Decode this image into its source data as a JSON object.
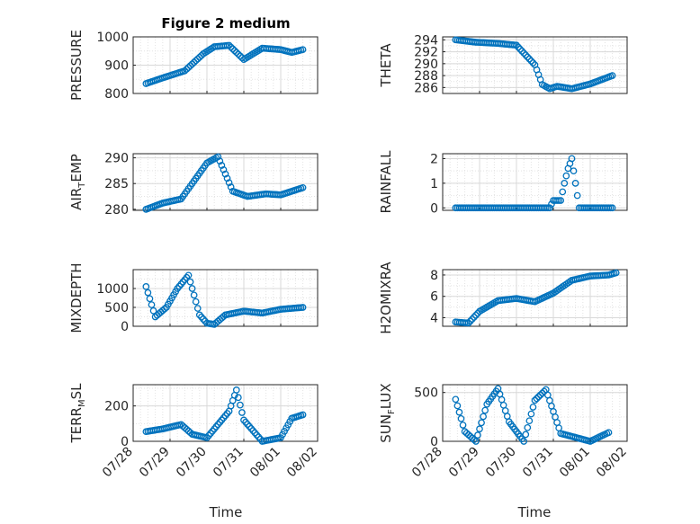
{
  "figure": {
    "title": "Figure 2 medium",
    "xlabel": "Time"
  },
  "colors": {
    "marker": "#0072bd",
    "axis": "#262626",
    "grid": "#d9d9d9"
  },
  "chart_data": [
    {
      "type": "scatter",
      "ylabel": "PRESSURE",
      "ylabel_sub": "",
      "x_ticks": [
        "07/28",
        "07/29",
        "07/30",
        "07/31",
        "08/01",
        "08/02"
      ],
      "ylim": [
        800,
        1000
      ],
      "yticks": [
        800,
        900,
        1000
      ],
      "grid": true,
      "series": [
        {
          "x": [
            0.35,
            0.8,
            1.4,
            1.9,
            2.2,
            2.6,
            3.0,
            3.5,
            4.0,
            4.3,
            4.6
          ],
          "y": [
            835,
            855,
            880,
            940,
            965,
            970,
            920,
            960,
            955,
            945,
            955
          ]
        }
      ]
    },
    {
      "type": "scatter",
      "ylabel": "THETA",
      "ylabel_sub": "",
      "x_ticks": [
        "07/28",
        "07/29",
        "07/30",
        "07/31",
        "08/01",
        "08/02"
      ],
      "ylim": [
        285,
        294.5
      ],
      "yticks": [
        286,
        288,
        290,
        292,
        294
      ],
      "grid": true,
      "series": [
        {
          "x": [
            0.35,
            0.9,
            1.5,
            2.0,
            2.5,
            2.7,
            2.9,
            3.1,
            3.5,
            4.0,
            4.6
          ],
          "y": [
            294,
            293.6,
            293.4,
            293.1,
            289.8,
            286.5,
            285.8,
            286.2,
            285.8,
            286.6,
            288
          ]
        }
      ]
    },
    {
      "type": "scatter",
      "ylabel": "AIR",
      "ylabel_sub": "T",
      "ylabel_suffix": "EMP",
      "x_ticks": [
        "07/28",
        "07/29",
        "07/30",
        "07/31",
        "08/01",
        "08/02"
      ],
      "ylim": [
        279.8,
        290.8
      ],
      "yticks": [
        280,
        285,
        290
      ],
      "grid": true,
      "series": [
        {
          "x": [
            0.35,
            0.8,
            1.3,
            1.7,
            2.0,
            2.3,
            2.7,
            3.1,
            3.6,
            4.0,
            4.6
          ],
          "y": [
            280,
            281.2,
            282,
            286,
            289,
            290.2,
            283.5,
            282.5,
            283,
            282.8,
            284.2
          ]
        }
      ]
    },
    {
      "type": "scatter",
      "ylabel": "RAINFALL",
      "ylabel_sub": "",
      "x_ticks": [
        "07/28",
        "07/29",
        "07/30",
        "07/31",
        "08/01",
        "08/02"
      ],
      "ylim": [
        -0.1,
        2.2
      ],
      "yticks": [
        0,
        1,
        2
      ],
      "grid": true,
      "series": [
        {
          "x": [
            0.35,
            1.0,
            2.0,
            2.9,
            3.0,
            3.2,
            3.3,
            3.4,
            3.5,
            3.7,
            4.2,
            4.6
          ],
          "y": [
            0,
            0,
            0,
            0,
            0.3,
            0.3,
            1.0,
            1.6,
            2.0,
            0,
            0,
            0
          ]
        }
      ]
    },
    {
      "type": "scatter",
      "ylabel": "MIXDEPTH",
      "ylabel_sub": "",
      "x_ticks": [
        "07/28",
        "07/29",
        "07/30",
        "07/31",
        "08/01",
        "08/02"
      ],
      "ylim": [
        0,
        1500
      ],
      "yticks": [
        0,
        500,
        1000
      ],
      "grid": true,
      "series": [
        {
          "x": [
            0.35,
            0.6,
            0.9,
            1.2,
            1.5,
            1.8,
            2.0,
            2.2,
            2.5,
            3.0,
            3.5,
            4.0,
            4.6
          ],
          "y": [
            1050,
            250,
            500,
            1000,
            1350,
            300,
            80,
            50,
            300,
            400,
            350,
            450,
            500
          ]
        }
      ]
    },
    {
      "type": "scatter",
      "ylabel": "H2OMIXRA",
      "ylabel_sub": "",
      "x_ticks": [
        "07/28",
        "07/29",
        "07/30",
        "07/31",
        "08/01",
        "08/02"
      ],
      "ylim": [
        3.2,
        8.5
      ],
      "yticks": [
        4,
        6,
        8
      ],
      "grid": true,
      "series": [
        {
          "x": [
            0.35,
            0.7,
            1.0,
            1.5,
            2.0,
            2.5,
            3.0,
            3.5,
            4.0,
            4.5,
            4.7
          ],
          "y": [
            3.6,
            3.5,
            4.6,
            5.6,
            5.8,
            5.5,
            6.3,
            7.5,
            7.9,
            8.0,
            8.2
          ]
        }
      ]
    },
    {
      "type": "scatter",
      "ylabel": "TERR",
      "ylabel_sub": "M",
      "ylabel_suffix": "SL",
      "x_ticks": [
        "07/28",
        "07/29",
        "07/30",
        "07/31",
        "08/01",
        "08/02"
      ],
      "ylim": [
        0,
        320
      ],
      "yticks": [
        0,
        200
      ],
      "grid": true,
      "series": [
        {
          "x": [
            0.35,
            0.8,
            1.3,
            1.6,
            2.0,
            2.6,
            2.8,
            3.0,
            3.5,
            4.0,
            4.3,
            4.6
          ],
          "y": [
            55,
            70,
            95,
            40,
            20,
            170,
            290,
            120,
            0,
            20,
            130,
            150
          ]
        }
      ]
    },
    {
      "type": "scatter",
      "ylabel": "SUN",
      "ylabel_sub": "F",
      "ylabel_suffix": "LUX",
      "x_ticks": [
        "07/28",
        "07/29",
        "07/30",
        "07/31",
        "08/01",
        "08/02"
      ],
      "ylim": [
        0,
        580
      ],
      "yticks": [
        0,
        500
      ],
      "grid": true,
      "series": [
        {
          "x": [
            0.35,
            0.6,
            0.9,
            1.2,
            1.5,
            1.8,
            2.2,
            2.5,
            2.8,
            3.2,
            3.6,
            4.0,
            4.5
          ],
          "y": [
            430,
            100,
            0,
            380,
            540,
            200,
            0,
            420,
            530,
            80,
            40,
            0,
            90
          ]
        }
      ]
    }
  ]
}
